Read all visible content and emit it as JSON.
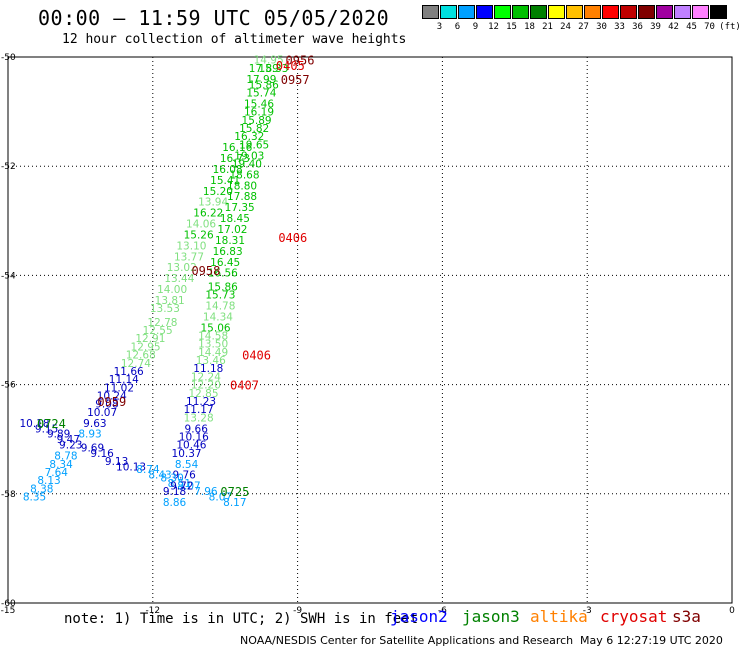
{
  "title": "00:00 – 11:59 UTC 05/05/2020",
  "subtitle": "12 hour collection of altimeter wave heights",
  "legend": {
    "unit": "(ft)",
    "colors": [
      "#808080",
      "#00e0e0",
      "#00a0ff",
      "#0000ff",
      "#00ff00",
      "#00c000",
      "#008000",
      "#ffff00",
      "#ffc000",
      "#ff8000",
      "#ff0000",
      "#c00000",
      "#800000",
      "#a000a0",
      "#c080ff",
      "#ff80ff",
      "#000000"
    ],
    "labels": [
      "3",
      "6",
      "9",
      "12",
      "15",
      "18",
      "21",
      "24",
      "27",
      "30",
      "33",
      "36",
      "39",
      "42",
      "45",
      "70"
    ]
  },
  "chart_data": {
    "type": "scatter",
    "xlim": [
      -15,
      0
    ],
    "ylim": [
      -60,
      -50
    ],
    "x_ticks": [
      "-15",
      "-12",
      "-9",
      "-6",
      "-3",
      "0"
    ],
    "y_ticks": [
      "-50",
      "-52",
      "-54",
      "-56",
      "-58",
      "-60"
    ],
    "grid": true,
    "points": [
      {
        "x": -9.6,
        "y": -50.05,
        "label": "14.95",
        "c": "#80e080"
      },
      {
        "x": -9.7,
        "y": -50.2,
        "label": "17.89",
        "c": "#00c000"
      },
      {
        "x": -9.5,
        "y": -50.2,
        "label": "15.33",
        "c": "#00c000"
      },
      {
        "x": -9.75,
        "y": -50.4,
        "label": "17.99",
        "c": "#00c000"
      },
      {
        "x": -9.7,
        "y": -50.5,
        "label": "15.86",
        "c": "#00c000"
      },
      {
        "x": -9.75,
        "y": -50.65,
        "label": "15.74",
        "c": "#00c000"
      },
      {
        "x": -9.8,
        "y": -50.85,
        "label": "15.46",
        "c": "#00c000"
      },
      {
        "x": -9.8,
        "y": -51.0,
        "label": "16.19",
        "c": "#00c000"
      },
      {
        "x": -9.85,
        "y": -51.15,
        "label": "15.89",
        "c": "#00c000"
      },
      {
        "x": -9.9,
        "y": -51.3,
        "label": "15.82",
        "c": "#00c000"
      },
      {
        "x": -10.0,
        "y": -51.45,
        "label": "16.32",
        "c": "#00c000"
      },
      {
        "x": -9.9,
        "y": -51.6,
        "label": "19.65",
        "c": "#00c000"
      },
      {
        "x": -10.25,
        "y": -51.65,
        "label": "16.16",
        "c": "#00c000"
      },
      {
        "x": -10.0,
        "y": -51.8,
        "label": "19.03",
        "c": "#00c000"
      },
      {
        "x": -10.3,
        "y": -51.85,
        "label": "16.73",
        "c": "#00c000"
      },
      {
        "x": -10.05,
        "y": -51.95,
        "label": "19.40",
        "c": "#00c000"
      },
      {
        "x": -10.45,
        "y": -52.05,
        "label": "16.08",
        "c": "#00c000"
      },
      {
        "x": -10.1,
        "y": -52.15,
        "label": "18.68",
        "c": "#00c000"
      },
      {
        "x": -10.5,
        "y": -52.25,
        "label": "15.41",
        "c": "#00c000"
      },
      {
        "x": -10.15,
        "y": -52.35,
        "label": "18.80",
        "c": "#00c000"
      },
      {
        "x": -10.65,
        "y": -52.45,
        "label": "15.20",
        "c": "#00c000"
      },
      {
        "x": -10.15,
        "y": -52.55,
        "label": "17.88",
        "c": "#00c000"
      },
      {
        "x": -10.75,
        "y": -52.65,
        "label": "13.94",
        "c": "#80e080"
      },
      {
        "x": -10.2,
        "y": -52.75,
        "label": "17.35",
        "c": "#00c000"
      },
      {
        "x": -10.85,
        "y": -52.85,
        "label": "16.22",
        "c": "#00c000"
      },
      {
        "x": -10.3,
        "y": -52.95,
        "label": "18.45",
        "c": "#00c000"
      },
      {
        "x": -11.0,
        "y": -53.05,
        "label": "14.06",
        "c": "#80e080"
      },
      {
        "x": -10.35,
        "y": -53.15,
        "label": "17.02",
        "c": "#00c000"
      },
      {
        "x": -11.05,
        "y": -53.25,
        "label": "15.26",
        "c": "#00c000"
      },
      {
        "x": -10.4,
        "y": -53.35,
        "label": "18.31",
        "c": "#00c000"
      },
      {
        "x": -11.2,
        "y": -53.45,
        "label": "13.10",
        "c": "#80e080"
      },
      {
        "x": -10.45,
        "y": -53.55,
        "label": "16.83",
        "c": "#00c000"
      },
      {
        "x": -11.25,
        "y": -53.65,
        "label": "13.77",
        "c": "#80e080"
      },
      {
        "x": -10.5,
        "y": -53.75,
        "label": "16.45",
        "c": "#00c000"
      },
      {
        "x": -11.4,
        "y": -53.85,
        "label": "13.02",
        "c": "#80e080"
      },
      {
        "x": -10.55,
        "y": -53.95,
        "label": "16.56",
        "c": "#00c000"
      },
      {
        "x": -11.45,
        "y": -54.05,
        "label": "13.44",
        "c": "#80e080"
      },
      {
        "x": -10.55,
        "y": -54.2,
        "label": "15.86",
        "c": "#00c000"
      },
      {
        "x": -11.6,
        "y": -54.25,
        "label": "14.00",
        "c": "#80e080"
      },
      {
        "x": -10.6,
        "y": -54.35,
        "label": "15.73",
        "c": "#00c000"
      },
      {
        "x": -11.65,
        "y": -54.45,
        "label": "13.81",
        "c": "#80e080"
      },
      {
        "x": -10.6,
        "y": -54.55,
        "label": "14.78",
        "c": "#80e080"
      },
      {
        "x": -11.75,
        "y": -54.6,
        "label": "13.53",
        "c": "#80e080"
      },
      {
        "x": -10.65,
        "y": -54.75,
        "label": "14.34",
        "c": "#80e080"
      },
      {
        "x": -11.8,
        "y": -54.85,
        "label": "12.78",
        "c": "#80e080"
      },
      {
        "x": -10.7,
        "y": -54.95,
        "label": "15.06",
        "c": "#00c000"
      },
      {
        "x": -11.9,
        "y": -55.0,
        "label": "12.55",
        "c": "#80e080"
      },
      {
        "x": -10.75,
        "y": -55.1,
        "label": "14.58",
        "c": "#80e080"
      },
      {
        "x": -12.05,
        "y": -55.15,
        "label": "12.91",
        "c": "#80e080"
      },
      {
        "x": -10.75,
        "y": -55.25,
        "label": "13.50",
        "c": "#80e080"
      },
      {
        "x": -12.15,
        "y": -55.3,
        "label": "12.95",
        "c": "#80e080"
      },
      {
        "x": -10.75,
        "y": -55.4,
        "label": "14.49",
        "c": "#80e080"
      },
      {
        "x": -12.25,
        "y": -55.45,
        "label": "12.68",
        "c": "#80e080"
      },
      {
        "x": -10.8,
        "y": -55.55,
        "label": "13.46",
        "c": "#80e080"
      },
      {
        "x": -12.35,
        "y": -55.6,
        "label": "12.74",
        "c": "#80e080"
      },
      {
        "x": -10.85,
        "y": -55.7,
        "label": "11.18",
        "c": "#0000c0"
      },
      {
        "x": -12.5,
        "y": -55.75,
        "label": "11.66",
        "c": "#0000c0"
      },
      {
        "x": -10.9,
        "y": -55.85,
        "label": "12.24",
        "c": "#80e080"
      },
      {
        "x": -12.6,
        "y": -55.9,
        "label": "11.14",
        "c": "#0000c0"
      },
      {
        "x": -10.9,
        "y": -56.0,
        "label": "12.20",
        "c": "#80e080"
      },
      {
        "x": -12.7,
        "y": -56.05,
        "label": "11.02",
        "c": "#0000c0"
      },
      {
        "x": -10.95,
        "y": -56.15,
        "label": "12.85",
        "c": "#80e080"
      },
      {
        "x": -12.85,
        "y": -56.2,
        "label": "10.24",
        "c": "#0000c0"
      },
      {
        "x": -11.0,
        "y": -56.3,
        "label": "11.23",
        "c": "#0000c0"
      },
      {
        "x": -12.95,
        "y": -56.35,
        "label": "9.08",
        "c": "#0000c0"
      },
      {
        "x": -11.05,
        "y": -56.45,
        "label": "11.17",
        "c": "#0000c0"
      },
      {
        "x": -13.05,
        "y": -56.5,
        "label": "10.07",
        "c": "#0000c0"
      },
      {
        "x": -11.05,
        "y": -56.6,
        "label": "13.28",
        "c": "#80e080"
      },
      {
        "x": -13.2,
        "y": -56.7,
        "label": "9.63",
        "c": "#0000c0"
      },
      {
        "x": -14.45,
        "y": -56.7,
        "label": "10.18",
        "c": "#0000c0"
      },
      {
        "x": -14.2,
        "y": -56.8,
        "label": "9.15",
        "c": "#0000c0"
      },
      {
        "x": -11.1,
        "y": -56.8,
        "label": "9.66",
        "c": "#0000c0"
      },
      {
        "x": -13.3,
        "y": -56.9,
        "label": "8.93",
        "c": "#00a0ff"
      },
      {
        "x": -13.95,
        "y": -56.9,
        "label": "9.89",
        "c": "#0000c0"
      },
      {
        "x": -11.15,
        "y": -56.95,
        "label": "10.16",
        "c": "#0000c0"
      },
      {
        "x": -13.75,
        "y": -57.0,
        "label": "9.47",
        "c": "#0000c0"
      },
      {
        "x": -13.7,
        "y": -57.1,
        "label": "9.23",
        "c": "#0000c0"
      },
      {
        "x": -13.25,
        "y": -57.15,
        "label": "9.69",
        "c": "#0000c0"
      },
      {
        "x": -11.2,
        "y": -57.1,
        "label": "10.46",
        "c": "#0000c0"
      },
      {
        "x": -13.05,
        "y": -57.25,
        "label": "9.16",
        "c": "#0000c0"
      },
      {
        "x": -13.8,
        "y": -57.3,
        "label": "8.78",
        "c": "#00a0ff"
      },
      {
        "x": -11.3,
        "y": -57.25,
        "label": "10.37",
        "c": "#0000c0"
      },
      {
        "x": -12.75,
        "y": -57.4,
        "label": "9.13",
        "c": "#0000c0"
      },
      {
        "x": -13.9,
        "y": -57.45,
        "label": "8.34",
        "c": "#00a0ff"
      },
      {
        "x": -12.45,
        "y": -57.5,
        "label": "10.13",
        "c": "#0000c0"
      },
      {
        "x": -11.3,
        "y": -57.45,
        "label": "8.54",
        "c": "#00a0ff"
      },
      {
        "x": -12.1,
        "y": -57.55,
        "label": "8.74",
        "c": "#00a0ff"
      },
      {
        "x": -14.0,
        "y": -57.6,
        "label": "7.64",
        "c": "#00a0ff"
      },
      {
        "x": -11.85,
        "y": -57.65,
        "label": "8.43",
        "c": "#00a0ff"
      },
      {
        "x": -11.35,
        "y": -57.65,
        "label": "9.76",
        "c": "#0000c0"
      },
      {
        "x": -11.6,
        "y": -57.7,
        "label": "8.30",
        "c": "#00a0ff"
      },
      {
        "x": -14.15,
        "y": -57.75,
        "label": "8.13",
        "c": "#00a0ff"
      },
      {
        "x": -11.45,
        "y": -57.8,
        "label": "8.51",
        "c": "#00a0ff"
      },
      {
        "x": -11.25,
        "y": -57.85,
        "label": "8.07",
        "c": "#00a0ff"
      },
      {
        "x": -11.4,
        "y": -57.85,
        "label": "9.72",
        "c": "#0000c0"
      },
      {
        "x": -14.3,
        "y": -57.9,
        "label": "8.38",
        "c": "#00a0ff"
      },
      {
        "x": -10.9,
        "y": -57.95,
        "label": "7.96",
        "c": "#00a0ff"
      },
      {
        "x": -11.55,
        "y": -57.95,
        "label": "9.18",
        "c": "#0000c0"
      },
      {
        "x": -14.45,
        "y": -58.05,
        "label": "8.35",
        "c": "#00a0ff"
      },
      {
        "x": -10.6,
        "y": -58.05,
        "label": "8.07",
        "c": "#00a0ff"
      },
      {
        "x": -11.55,
        "y": -58.15,
        "label": "8.86",
        "c": "#00a0ff"
      },
      {
        "x": -10.3,
        "y": -58.15,
        "label": "8.17",
        "c": "#00a0ff"
      }
    ],
    "time_labels": [
      {
        "x": -8.95,
        "y": -50.05,
        "label": "0956",
        "c": "#800000"
      },
      {
        "x": -9.15,
        "y": -50.15,
        "label": "0405",
        "c": "#e00000"
      },
      {
        "x": -9.05,
        "y": -50.4,
        "label": "0957",
        "c": "#800000"
      },
      {
        "x": -9.1,
        "y": -53.3,
        "label": "0406",
        "c": "#e00000"
      },
      {
        "x": -10.9,
        "y": -53.9,
        "label": "0958",
        "c": "#800000"
      },
      {
        "x": -9.85,
        "y": -55.45,
        "label": "0406",
        "c": "#e00000"
      },
      {
        "x": -10.1,
        "y": -56.0,
        "label": "0407",
        "c": "#e00000"
      },
      {
        "x": -12.85,
        "y": -56.3,
        "label": "0959",
        "c": "#800000"
      },
      {
        "x": -14.1,
        "y": -56.7,
        "label": "0724",
        "c": "#008000"
      },
      {
        "x": -10.3,
        "y": -57.95,
        "label": "0725",
        "c": "#008000"
      }
    ]
  },
  "note": "note: 1) Time is in UTC; 2) SWH is in feet",
  "satellites": [
    {
      "name": "jason2",
      "color": "#0000ff"
    },
    {
      "name": "jason3",
      "color": "#008000"
    },
    {
      "name": "altika",
      "color": "#ff8000"
    },
    {
      "name": "cryosat",
      "color": "#e00000"
    },
    {
      "name": "s3a",
      "color": "#800000"
    }
  ],
  "credit": "NOAA/NESDIS Center for Satellite Applications and Research",
  "credit_time": "May  6 12:27:19 UTC 2020"
}
